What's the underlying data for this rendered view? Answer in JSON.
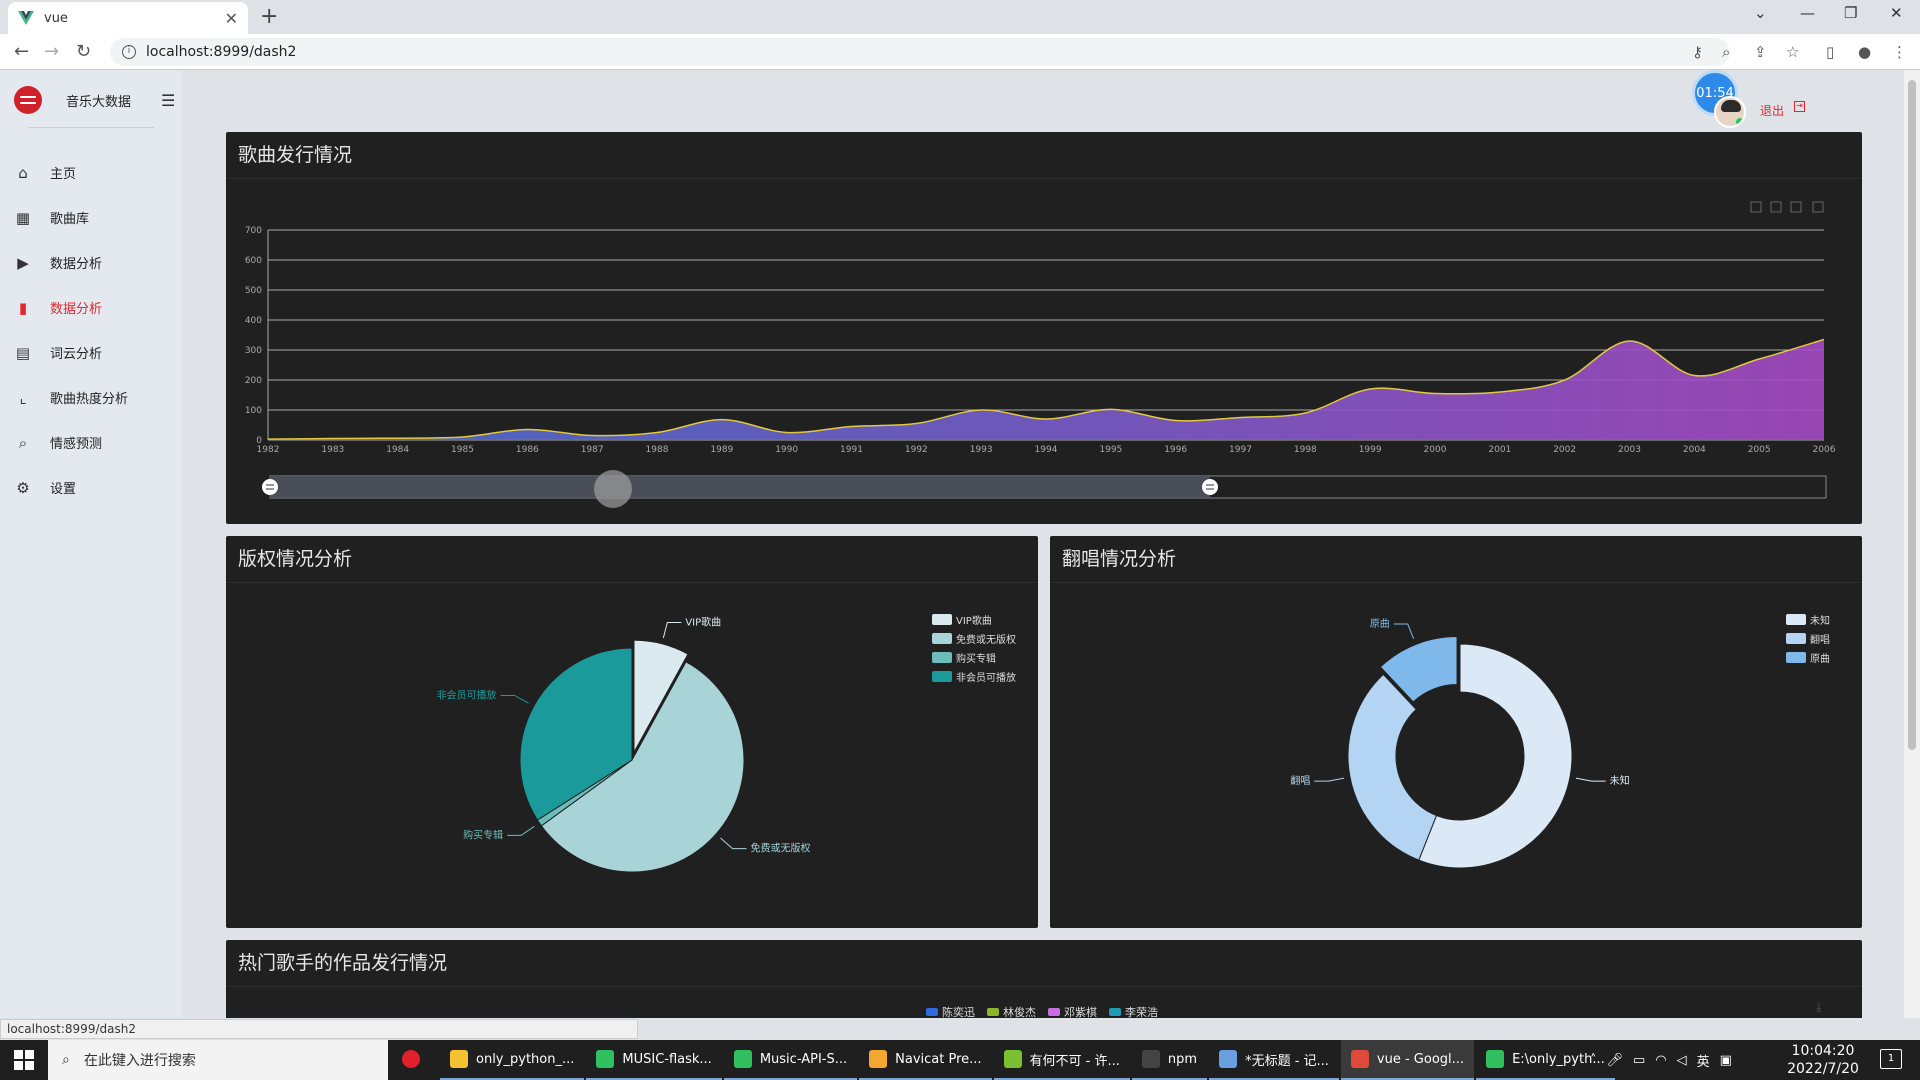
{
  "browser": {
    "tab_title": "vue",
    "url": "localhost:8999/dash2",
    "status_url": "localhost:8999/dash2"
  },
  "sidebar": {
    "brand": "音乐大数据",
    "items": [
      {
        "label": "主页",
        "icon": "home-icon"
      },
      {
        "label": "歌曲库",
        "icon": "grid-icon"
      },
      {
        "label": "数据分析",
        "icon": "play-circle-icon"
      },
      {
        "label": "数据分析",
        "icon": "bar-chart-icon",
        "active": true
      },
      {
        "label": "词云分析",
        "icon": "word-cloud-icon"
      },
      {
        "label": "歌曲热度分析",
        "icon": "scatter-chart-icon"
      },
      {
        "label": "情感预测",
        "icon": "sentiment-icon"
      },
      {
        "label": "设置",
        "icon": "gear-icon"
      }
    ]
  },
  "header": {
    "timer": "01:54",
    "logout": "退出"
  },
  "panels": {
    "release_title": "歌曲发行情况",
    "copyright_title": "版权情况分析",
    "cover_title": "翻唱情况分析",
    "singer_title": "热门歌手的作品发行情况"
  },
  "chart_data": [
    {
      "type": "area",
      "title": "歌曲发行情况",
      "x": [
        "1982",
        "1983",
        "1984",
        "1985",
        "1986",
        "1987",
        "1988",
        "1989",
        "1990",
        "1991",
        "1992",
        "1993",
        "1994",
        "1995",
        "1996",
        "1997",
        "1998",
        "1999",
        "2000",
        "2001",
        "2002",
        "2003",
        "2004",
        "2005",
        "2006"
      ],
      "values": [
        3,
        5,
        6,
        10,
        35,
        15,
        25,
        68,
        25,
        45,
        55,
        100,
        70,
        102,
        65,
        75,
        90,
        170,
        155,
        160,
        200,
        330,
        215,
        270,
        335
      ],
      "ylim": [
        0,
        700
      ],
      "y_ticks": [
        0,
        100,
        200,
        300,
        400,
        500,
        600,
        700
      ],
      "grid": true,
      "gradient_colors": [
        "#4a6fd1",
        "#a54ac4"
      ],
      "line_color": "#e0c840"
    },
    {
      "type": "pie",
      "title": "版权情况分析",
      "categories": [
        "VIP歌曲",
        "免费或无版权",
        "购买专辑",
        "非会员可播放"
      ],
      "values": [
        8,
        57,
        1,
        34
      ],
      "colors": [
        "#dbeaef",
        "#a8d4d8",
        "#6cbcbc",
        "#1a9a9a"
      ],
      "legend": "top-right"
    },
    {
      "type": "pie",
      "title": "翻唱情况分析",
      "categories": [
        "未知",
        "翻唱",
        "原曲"
      ],
      "values": [
        56,
        32,
        12
      ],
      "colors": [
        "#dbe9f6",
        "#b3d4f2",
        "#7fb8ea"
      ],
      "legend": "top-right"
    },
    {
      "type": "line",
      "title": "热门歌手的作品发行情况",
      "series": [
        {
          "name": "陈奕迅",
          "color": "#2f6be0"
        },
        {
          "name": "林俊杰",
          "color": "#8ab62a"
        },
        {
          "name": "邓紫棋",
          "color": "#c86ee0"
        },
        {
          "name": "李荣浩",
          "color": "#1f9ab5"
        }
      ],
      "legend": "top-center"
    }
  ],
  "taskbar": {
    "search_placeholder": "在此键入进行搜索",
    "tasks": [
      {
        "label": "only_python_...",
        "color": "#f2c230"
      },
      {
        "label": "MUSIC-flask...",
        "color": "#30c060"
      },
      {
        "label": "Music-API-S...",
        "color": "#30c060"
      },
      {
        "label": "Navicat Pre...",
        "color": "#f2a830"
      },
      {
        "label": "有何不可 - 许...",
        "color": "#7ac030"
      },
      {
        "label": "npm",
        "color": "#444444"
      },
      {
        "label": "*无标题 - 记...",
        "color": "#6aa0e0"
      },
      {
        "label": "vue - Googl...",
        "color": "#e04a3a"
      },
      {
        "label": "E:\\only_pyth...",
        "color": "#30c060"
      }
    ],
    "ime": "英",
    "time": "10:04:20",
    "date": "2022/7/20",
    "notification_count": "1"
  }
}
